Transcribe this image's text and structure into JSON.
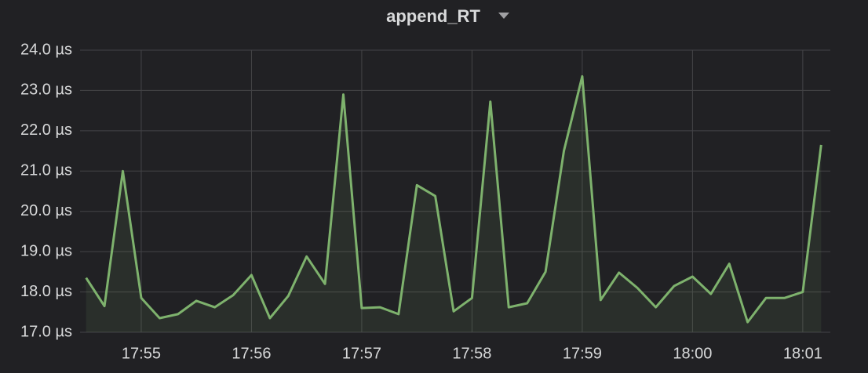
{
  "chart_data": {
    "type": "line",
    "title": "append_RT",
    "categories": [
      null,
      null,
      null,
      "17:55",
      null,
      null,
      null,
      null,
      null,
      "17:56",
      null,
      null,
      null,
      null,
      null,
      "17:57",
      null,
      null,
      null,
      null,
      null,
      "17:58",
      null,
      null,
      null,
      null,
      null,
      "17:59",
      null,
      null,
      null,
      null,
      null,
      "18:00",
      null,
      null,
      null,
      null,
      null,
      "18:01",
      null
    ],
    "values": [
      18.35,
      17.65,
      21.0,
      17.85,
      17.35,
      17.45,
      17.78,
      17.62,
      17.92,
      18.42,
      17.35,
      17.9,
      18.88,
      18.2,
      22.9,
      17.6,
      17.62,
      17.45,
      20.65,
      20.38,
      17.52,
      17.85,
      22.72,
      17.62,
      17.72,
      18.5,
      21.5,
      23.35,
      17.8,
      18.48,
      18.1,
      17.62,
      18.15,
      18.38,
      17.95,
      18.7,
      17.25,
      17.85,
      17.85,
      18.0,
      21.65
    ],
    "color": "#7eb26d",
    "ylim": [
      17,
      24
    ],
    "yticks": [
      {
        "value": 17,
        "label": "17.0 µs"
      },
      {
        "value": 18,
        "label": "18.0 µs"
      },
      {
        "value": 19,
        "label": "19.0 µs"
      },
      {
        "value": 20,
        "label": "20.0 µs"
      },
      {
        "value": 21,
        "label": "21.0 µs"
      },
      {
        "value": 22,
        "label": "22.0 µs"
      },
      {
        "value": 23,
        "label": "23.0 µs"
      },
      {
        "value": 24,
        "label": "24.0 µs"
      }
    ],
    "grid": true
  }
}
